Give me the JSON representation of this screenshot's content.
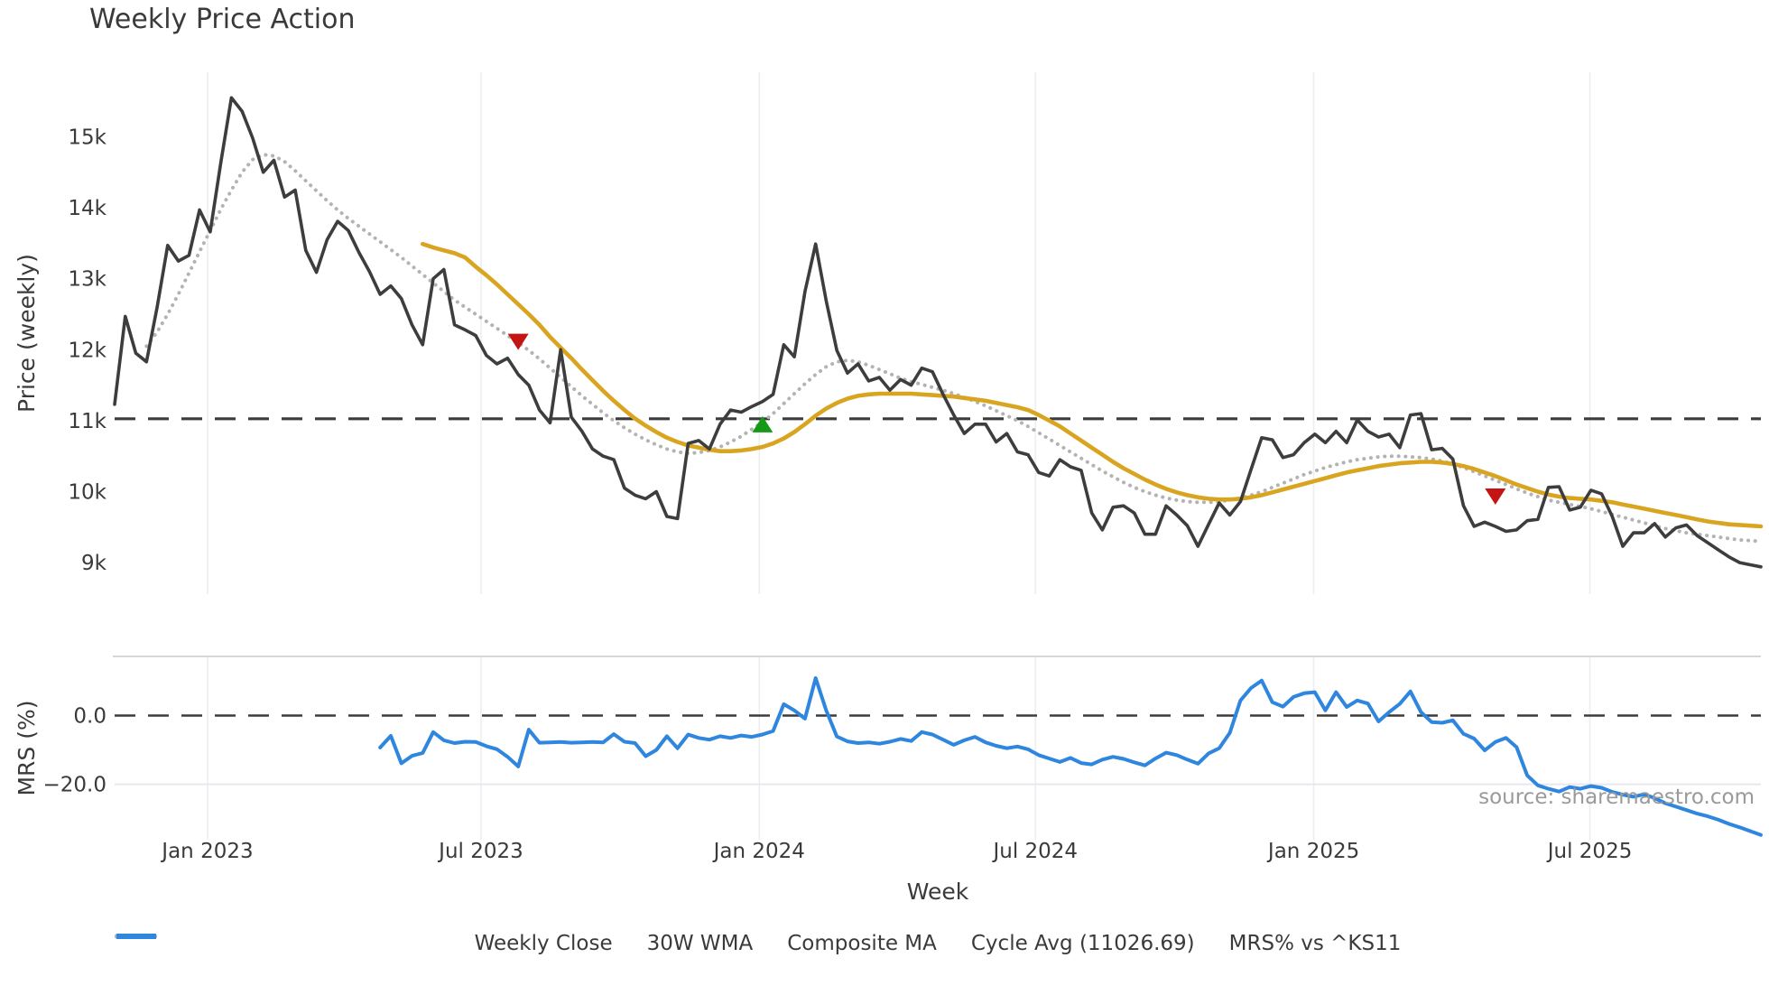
{
  "title": "Weekly Price Action",
  "xlabel": "Week",
  "source": "source: sharemaestro.com",
  "price_panel": {
    "ylabel": "Price (weekly)",
    "yticks": [
      {
        "label": "15k",
        "v": 15
      },
      {
        "label": "14k",
        "v": 14
      },
      {
        "label": "13k",
        "v": 13
      },
      {
        "label": "12k",
        "v": 12
      },
      {
        "label": "11k",
        "v": 11
      },
      {
        "label": "10k",
        "v": 10
      },
      {
        "label": "9k",
        "v": 9
      }
    ]
  },
  "mrs_panel": {
    "ylabel": "MRS (%)",
    "yticks": [
      {
        "label": "0.0",
        "v": 0
      },
      {
        "label": "−20.0",
        "v": -20
      }
    ],
    "minor_gridline_v": -20
  },
  "xticks": [
    {
      "label": "Jan 2023",
      "week": 8.75
    },
    {
      "label": "Jul 2023",
      "week": 34.5
    },
    {
      "label": "Jan 2024",
      "week": 60.7
    },
    {
      "label": "Jul 2024",
      "week": 86.7
    },
    {
      "label": "Jan 2025",
      "week": 112.9
    },
    {
      "label": "Jul 2025",
      "week": 138.9
    }
  ],
  "legend": [
    {
      "label": "Weekly Close",
      "style": "solid",
      "color": "#3f3f3f"
    },
    {
      "label": "30W WMA",
      "style": "solid",
      "color": "#d9a521"
    },
    {
      "label": "Composite MA",
      "style": "dotted",
      "color": "#b3b3b3"
    },
    {
      "label": "Cycle Avg (11026.69)",
      "style": "dashed",
      "color": "#4a4a4a"
    },
    {
      "label": "MRS% vs ^KS11",
      "style": "solid",
      "color": "#2e86de"
    }
  ],
  "chart_data": {
    "type": "line",
    "x_unit": "week_index",
    "weeks_total": 155,
    "price_axis_range_k": [
      8.556,
      15.91
    ],
    "mrs_axis_range": [
      -36.1,
      17.2
    ],
    "grid": "vertical-only",
    "legend_position": "bottom-center",
    "hlines": [
      {
        "panel": "price",
        "name": "cycle-avg",
        "label": "Cycle Avg (11026.69)",
        "v": 11.0267,
        "style": "dashed",
        "color": "#3c3c3c"
      },
      {
        "panel": "mrs",
        "name": "zero-line",
        "v": 0,
        "style": "dashed",
        "color": "#3c3c3c"
      }
    ],
    "markers": [
      {
        "name": "sell-signal",
        "shape": "triangle-down",
        "color": "#c51414",
        "week": 38,
        "price_k": 12.11
      },
      {
        "name": "buy-signal",
        "shape": "triangle-up",
        "color": "#159a15",
        "week": 61,
        "price_k": 10.95
      },
      {
        "name": "sell-signal",
        "shape": "triangle-down",
        "color": "#c51414",
        "week": 130,
        "price_k": 9.93
      }
    ],
    "series": [
      {
        "name": "Weekly Close",
        "panel": "price",
        "start_week": 0,
        "color": "#3d3d3d",
        "style": "solid",
        "width": 3.6,
        "values_k": [
          11.23,
          12.47,
          11.95,
          11.83,
          12.6,
          13.47,
          13.25,
          13.33,
          13.97,
          13.66,
          14.64,
          15.55,
          15.36,
          14.98,
          14.5,
          14.67,
          14.15,
          14.25,
          13.4,
          13.09,
          13.55,
          13.81,
          13.68,
          13.37,
          13.1,
          12.78,
          12.9,
          12.72,
          12.35,
          12.07,
          13.0,
          13.13,
          12.35,
          12.28,
          12.2,
          11.92,
          11.8,
          11.88,
          11.65,
          11.5,
          11.15,
          10.97,
          12.0,
          11.05,
          10.85,
          10.6,
          10.5,
          10.45,
          10.05,
          9.95,
          9.9,
          10.0,
          9.65,
          9.62,
          10.68,
          10.72,
          10.6,
          10.95,
          11.15,
          11.12,
          11.2,
          11.27,
          11.37,
          12.07,
          11.9,
          12.82,
          13.49,
          12.69,
          11.99,
          11.67,
          11.8,
          11.56,
          11.61,
          11.43,
          11.58,
          11.5,
          11.74,
          11.69,
          11.37,
          11.08,
          10.82,
          10.95,
          10.95,
          10.7,
          10.82,
          10.56,
          10.52,
          10.27,
          10.22,
          10.45,
          10.35,
          10.3,
          9.7,
          9.46,
          9.78,
          9.8,
          9.7,
          9.4,
          9.4,
          9.8,
          9.67,
          9.52,
          9.23,
          9.54,
          9.84,
          9.67,
          9.86,
          10.31,
          10.76,
          10.73,
          10.48,
          10.52,
          10.69,
          10.81,
          10.69,
          10.85,
          10.69,
          11.01,
          10.85,
          10.77,
          10.81,
          10.62,
          11.08,
          11.1,
          10.59,
          10.61,
          10.46,
          9.8,
          9.51,
          9.57,
          9.51,
          9.44,
          9.46,
          9.59,
          9.61,
          10.06,
          10.07,
          9.74,
          9.78,
          10.02,
          9.97,
          9.65,
          9.23,
          9.42,
          9.42,
          9.55,
          9.36,
          9.49,
          9.53,
          9.38,
          9.28,
          9.18,
          9.08,
          9.0,
          8.97,
          8.94
        ]
      },
      {
        "name": "30W WMA",
        "panel": "price",
        "start_week": 29,
        "color": "#d9a521",
        "style": "solid",
        "width": 4.6,
        "values_k": [
          13.49,
          13.44,
          13.4,
          13.36,
          13.3,
          13.17,
          13.05,
          12.92,
          12.78,
          12.64,
          12.5,
          12.35,
          12.18,
          12.03,
          11.88,
          11.72,
          11.57,
          11.42,
          11.28,
          11.15,
          11.03,
          10.93,
          10.84,
          10.76,
          10.7,
          10.65,
          10.62,
          10.59,
          10.57,
          10.57,
          10.58,
          10.6,
          10.63,
          10.68,
          10.75,
          10.84,
          10.95,
          11.07,
          11.17,
          11.25,
          11.31,
          11.35,
          11.37,
          11.38,
          11.38,
          11.38,
          11.38,
          11.37,
          11.36,
          11.35,
          11.34,
          11.32,
          11.3,
          11.28,
          11.25,
          11.22,
          11.19,
          11.15,
          11.08,
          11.0,
          10.92,
          10.82,
          10.72,
          10.62,
          10.52,
          10.42,
          10.33,
          10.25,
          10.17,
          10.1,
          10.04,
          9.99,
          9.95,
          9.92,
          9.9,
          9.89,
          9.89,
          9.9,
          9.92,
          9.95,
          9.99,
          10.03,
          10.07,
          10.11,
          10.15,
          10.19,
          10.23,
          10.27,
          10.3,
          10.33,
          10.36,
          10.38,
          10.4,
          10.41,
          10.42,
          10.42,
          10.41,
          10.39,
          10.36,
          10.32,
          10.27,
          10.22,
          10.16,
          10.1,
          10.05,
          10.0,
          9.96,
          9.93,
          9.91,
          9.9,
          9.89,
          9.87,
          9.85,
          9.82,
          9.79,
          9.76,
          9.73,
          9.7,
          9.67,
          9.64,
          9.61,
          9.58,
          9.56,
          9.54,
          9.53,
          9.52,
          9.51
        ]
      },
      {
        "name": "Composite MA",
        "panel": "price",
        "start_week": 3,
        "color": "#b3b3b3",
        "style": "dotted",
        "width": 4,
        "values_k": [
          12.05,
          12.25,
          12.5,
          12.78,
          13.08,
          13.38,
          13.68,
          13.98,
          14.25,
          14.5,
          14.68,
          14.75,
          14.73,
          14.65,
          14.52,
          14.38,
          14.24,
          14.1,
          13.97,
          13.85,
          13.74,
          13.63,
          13.52,
          13.41,
          13.3,
          13.18,
          13.06,
          12.94,
          12.82,
          12.7,
          12.6,
          12.5,
          12.4,
          12.3,
          12.2,
          12.1,
          11.99,
          11.87,
          11.74,
          11.61,
          11.48,
          11.35,
          11.23,
          11.11,
          11.0,
          10.9,
          10.81,
          10.73,
          10.66,
          10.6,
          10.56,
          10.54,
          10.55,
          10.58,
          10.63,
          10.7,
          10.78,
          10.88,
          10.98,
          11.1,
          11.24,
          11.38,
          11.52,
          11.65,
          11.76,
          11.83,
          11.85,
          11.83,
          11.78,
          11.72,
          11.66,
          11.6,
          11.55,
          11.51,
          11.47,
          11.43,
          11.38,
          11.33,
          11.27,
          11.21,
          11.14,
          11.07,
          11.0,
          10.92,
          10.83,
          10.74,
          10.65,
          10.56,
          10.47,
          10.38,
          10.29,
          10.21,
          10.13,
          10.06,
          10.0,
          9.95,
          9.91,
          9.88,
          9.86,
          9.85,
          9.85,
          9.86,
          9.88,
          9.91,
          9.95,
          10.0,
          10.06,
          10.12,
          10.18,
          10.24,
          10.29,
          10.34,
          10.38,
          10.42,
          10.45,
          10.47,
          10.49,
          10.5,
          10.5,
          10.49,
          10.48,
          10.46,
          10.43,
          10.39,
          10.34,
          10.28,
          10.22,
          10.16,
          10.1,
          10.04,
          9.98,
          9.93,
          9.88,
          9.85,
          9.82,
          9.79,
          9.76,
          9.72,
          9.68,
          9.64,
          9.6,
          9.56,
          9.52,
          9.48,
          9.45,
          9.42,
          9.4,
          9.38,
          9.36,
          9.34,
          9.32,
          9.31,
          9.3
        ]
      },
      {
        "name": "MRS% vs ^KS11",
        "panel": "mrs",
        "start_week": 25,
        "color": "#2e86de",
        "style": "solid",
        "width": 4,
        "values_pct": [
          -9.3,
          -5.9,
          -13.9,
          -11.7,
          -10.9,
          -4.8,
          -7.2,
          -8.0,
          -7.6,
          -7.7,
          -8.9,
          -9.8,
          -12.0,
          -14.8,
          -4.1,
          -7.9,
          -7.8,
          -7.7,
          -7.9,
          -7.8,
          -7.7,
          -7.8,
          -5.4,
          -7.6,
          -8.0,
          -11.8,
          -10.0,
          -6.0,
          -9.5,
          -5.5,
          -6.5,
          -7.0,
          -6.0,
          -6.5,
          -5.8,
          -6.2,
          -5.5,
          -4.5,
          3.3,
          1.5,
          -0.9,
          10.9,
          1.5,
          -6.1,
          -7.5,
          -8.0,
          -7.8,
          -8.2,
          -7.6,
          -6.8,
          -7.4,
          -4.8,
          -5.5,
          -7.0,
          -8.5,
          -7.2,
          -6.2,
          -7.8,
          -8.8,
          -9.5,
          -9.0,
          -9.8,
          -11.5,
          -12.5,
          -13.5,
          -12.3,
          -13.8,
          -14.2,
          -12.8,
          -12.0,
          -12.6,
          -13.6,
          -14.5,
          -12.5,
          -10.8,
          -11.5,
          -12.8,
          -14.0,
          -11.0,
          -9.5,
          -5.0,
          4.4,
          8.0,
          10.2,
          3.9,
          2.6,
          5.4,
          6.5,
          6.8,
          1.5,
          6.8,
          2.5,
          4.4,
          3.5,
          -1.7,
          1.0,
          3.4,
          7.0,
          1.0,
          -1.9,
          -2.1,
          -1.4,
          -5.3,
          -6.7,
          -10.1,
          -7.7,
          -6.5,
          -9.2,
          -17.4,
          -20.3,
          -21.3,
          -22.1,
          -20.8,
          -21.3,
          -20.5,
          -21.0,
          -22.2,
          -23.0,
          -23.6,
          -22.9,
          -24.0,
          -25.5,
          -26.5,
          -27.5,
          -28.5,
          -29.3,
          -30.3,
          -31.5,
          -32.5,
          -33.6,
          -34.7
        ]
      }
    ]
  }
}
